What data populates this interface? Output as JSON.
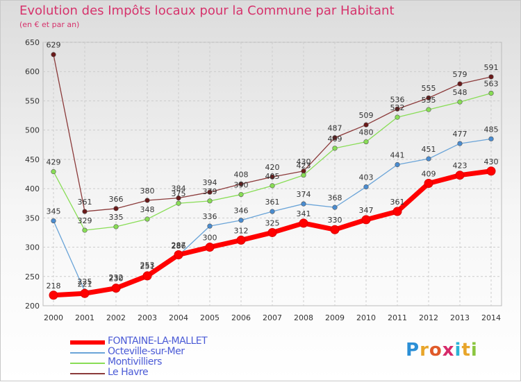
{
  "chart_data": {
    "type": "line",
    "title": "Evolution des Impôts locaux pour la Commune par Habitant",
    "subtitle": "(en € et par an)",
    "xlabel": "",
    "ylabel": "",
    "x": [
      "2000",
      "2001",
      "2002",
      "2003",
      "2004",
      "2005",
      "2006",
      "2007",
      "2008",
      "2009",
      "2010",
      "2011",
      "2012",
      "2013",
      "2014"
    ],
    "ylim": [
      200,
      650
    ],
    "yticks": [
      200,
      250,
      300,
      350,
      400,
      450,
      500,
      550,
      600,
      650
    ],
    "grid": true,
    "series": [
      {
        "name": "FONTAINE-LA-MALLET",
        "color": "#ff0000",
        "marker_color": "#ff0000",
        "values": [
          218,
          221,
          230,
          251,
          287,
          300,
          312,
          325,
          341,
          330,
          347,
          361,
          409,
          423,
          430
        ]
      },
      {
        "name": "Octeville-sur-Mer",
        "color": "#6aa4d8",
        "marker_color": "#4a8cd0",
        "values": [
          345,
          225,
          232,
          253,
          286,
          336,
          346,
          361,
          374,
          368,
          403,
          441,
          451,
          477,
          485
        ]
      },
      {
        "name": "Montivilliers",
        "color": "#88dd55",
        "marker_color": "#88dd55",
        "values": [
          429,
          329,
          335,
          348,
          375,
          379,
          390,
          405,
          423,
          469,
          480,
          522,
          535,
          548,
          563
        ]
      },
      {
        "name": "Le Havre",
        "color": "#8b3a3a",
        "marker_color": "#6a1a1a",
        "values": [
          629,
          361,
          366,
          380,
          384,
          394,
          408,
          420,
          430,
          487,
          509,
          536,
          555,
          579,
          591
        ]
      }
    ],
    "legend": "bottom-left"
  },
  "logo": {
    "text": "Proxiti",
    "letters": [
      "P",
      "r",
      "o",
      "x",
      "i",
      "t",
      "i"
    ],
    "colors": [
      "#2b8fd6",
      "#e8a52a",
      "#e05a2a",
      "#d62a6a",
      "#2bb3d6",
      "#e8a52a",
      "#8bc53f"
    ]
  }
}
